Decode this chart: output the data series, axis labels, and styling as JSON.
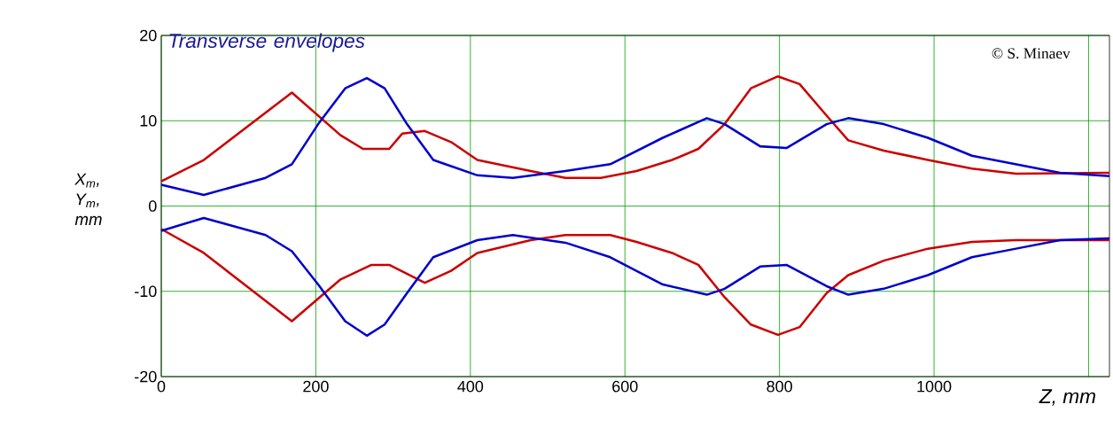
{
  "chart_data": {
    "type": "line",
    "title": "Transverse envelopes",
    "xlabel": "Z, mm",
    "ylabel": "X$_{m}$, Y$_{m}$, mm",
    "annotations": [
      "© S. Minaev"
    ],
    "xlim": [
      0,
      1227
    ],
    "ylim": [
      -20,
      20
    ],
    "xticks": [
      0,
      200,
      400,
      600,
      800,
      1000,
      {
        "value": 1200,
        "label": null
      }
    ],
    "yticks": [
      -20,
      -10,
      0,
      10,
      20
    ],
    "grid": true,
    "series": [
      {
        "color": "#cc0000",
        "x": [
          0,
          55,
          169,
          232,
          261,
          295,
          312,
          341,
          375,
          409,
          478,
          523,
          569,
          615,
          661,
          695,
          729,
          763,
          798,
          826,
          861,
          889,
          935,
          992,
          1049,
          1106,
          1227
        ],
        "values": [
          2.9,
          5.4,
          13.3,
          8.3,
          6.7,
          6.7,
          8.5,
          8.8,
          7.5,
          5.4,
          4.1,
          3.3,
          3.3,
          4.1,
          5.4,
          6.7,
          9.6,
          13.8,
          15.2,
          14.3,
          10.6,
          7.7,
          6.5,
          5.4,
          4.4,
          3.8,
          3.9
        ]
      },
      {
        "color": "#cc0000",
        "x": [
          0,
          55,
          169,
          232,
          272,
          295,
          341,
          375,
          409,
          478,
          523,
          581,
          615,
          661,
          695,
          729,
          763,
          798,
          826,
          861,
          889,
          935,
          992,
          1049,
          1106,
          1227
        ],
        "values": [
          -2.7,
          -5.5,
          -13.5,
          -8.6,
          -6.9,
          -6.9,
          -9.0,
          -7.6,
          -5.5,
          -4.0,
          -3.4,
          -3.4,
          -4.2,
          -5.5,
          -6.9,
          -10.7,
          -13.9,
          -15.1,
          -14.2,
          -10.2,
          -8.1,
          -6.4,
          -5.0,
          -4.2,
          -4.0,
          -4.0
        ]
      },
      {
        "color": "#0000cc",
        "x": [
          0,
          55,
          135,
          169,
          203,
          238,
          266,
          289,
          318,
          352,
          409,
          455,
          523,
          581,
          649,
          706,
          729,
          775,
          809,
          861,
          889,
          935,
          992,
          1049,
          1106,
          1163,
          1227
        ],
        "values": [
          2.5,
          1.3,
          3.3,
          4.9,
          9.6,
          13.8,
          15.0,
          13.8,
          9.6,
          5.4,
          3.6,
          3.3,
          4.1,
          4.9,
          8.0,
          10.3,
          9.6,
          7.0,
          6.8,
          9.6,
          10.3,
          9.6,
          8.0,
          5.9,
          4.9,
          3.9,
          3.5
        ]
      },
      {
        "color": "#0000cc",
        "x": [
          0,
          55,
          135,
          169,
          203,
          238,
          266,
          289,
          318,
          352,
          409,
          455,
          523,
          581,
          649,
          706,
          729,
          775,
          809,
          861,
          889,
          935,
          992,
          1049,
          1106,
          1163,
          1227
        ],
        "values": [
          -2.9,
          -1.4,
          -3.4,
          -5.3,
          -9.2,
          -13.5,
          -15.2,
          -13.9,
          -10.2,
          -6.0,
          -4.0,
          -3.4,
          -4.3,
          -6.0,
          -9.2,
          -10.4,
          -9.7,
          -7.1,
          -6.9,
          -9.4,
          -10.4,
          -9.7,
          -8.1,
          -6.0,
          -5.0,
          -4.0,
          -3.8
        ]
      }
    ]
  }
}
